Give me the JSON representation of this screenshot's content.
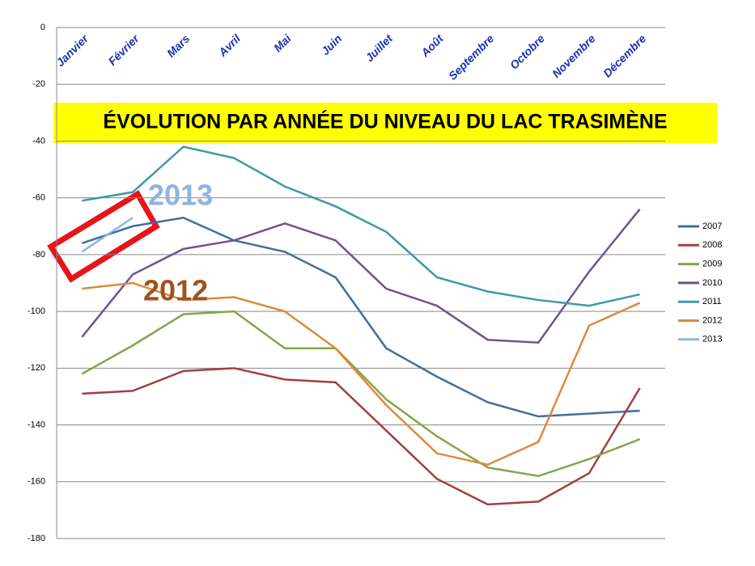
{
  "chart_data": {
    "type": "line",
    "title": "ÉVOLUTION PAR ANNÉE DU NIVEAU DU LAC TRASIMÈNE",
    "categories": [
      "Janvier",
      "Février",
      "Mars",
      "Avril",
      "Mai",
      "Juin",
      "Juillet",
      "Août",
      "Septembre",
      "Octobre",
      "Novembre",
      "Décembre"
    ],
    "series": [
      {
        "name": "2007",
        "color": "#3f6fa0",
        "values": [
          -76,
          -70,
          -67,
          -75,
          -79,
          -88,
          -113,
          -123,
          -132,
          -137,
          -136,
          -135
        ]
      },
      {
        "name": "2008",
        "color": "#a0413e",
        "values": [
          -129,
          -128,
          -121,
          -120,
          -124,
          -125,
          -142,
          -159,
          -168,
          -167,
          -157,
          -127
        ]
      },
      {
        "name": "2009",
        "color": "#86a44a",
        "values": [
          -122,
          -112,
          -101,
          -100,
          -113,
          -113,
          -131,
          -144,
          -155,
          -158,
          -152,
          -145
        ]
      },
      {
        "name": "2010",
        "color": "#6e548d",
        "values": [
          -109,
          -87,
          -78,
          -75,
          -69,
          -75,
          -92,
          -98,
          -110,
          -111,
          -86,
          -64
        ]
      },
      {
        "name": "2011",
        "color": "#3d9aa6",
        "values": [
          -61,
          -58,
          -42,
          -46,
          -56,
          -63,
          -72,
          -88,
          -93,
          -96,
          -98,
          -94
        ]
      },
      {
        "name": "2012",
        "color": "#db8a3c",
        "values": [
          -92,
          -90,
          -96,
          -95,
          -100,
          -113,
          -133,
          -150,
          -154,
          -146,
          -105,
          -97
        ]
      },
      {
        "name": "2013",
        "color": "#8eb4e3",
        "values": [
          -79,
          -67,
          null,
          null,
          null,
          null,
          null,
          null,
          null,
          null,
          null,
          null
        ]
      }
    ],
    "annotations": [
      {
        "text": "2013",
        "color": "#8eb4e3"
      },
      {
        "text": "2012",
        "color": "#a0521d"
      }
    ],
    "ylim": [
      -180,
      0
    ],
    "yticks": [
      -180,
      -160,
      -140,
      -120,
      -100,
      -80,
      -60,
      -40,
      -20,
      0
    ],
    "grid": true,
    "legend": "right"
  }
}
